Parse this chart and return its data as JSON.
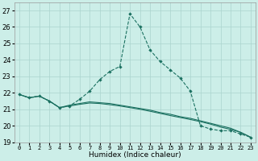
{
  "xlabel": "Humidex (Indice chaleur)",
  "bg_color": "#cceee8",
  "grid_color": "#aad4ce",
  "line_color": "#1a7060",
  "xlim": [
    -0.5,
    23.5
  ],
  "ylim": [
    19,
    27.5
  ],
  "yticks": [
    19,
    20,
    21,
    22,
    23,
    24,
    25,
    26,
    27
  ],
  "xticks": [
    0,
    1,
    2,
    3,
    4,
    5,
    6,
    7,
    8,
    9,
    10,
    11,
    12,
    13,
    14,
    15,
    16,
    17,
    18,
    19,
    20,
    21,
    22,
    23
  ],
  "line1_x": [
    0,
    1,
    2,
    3,
    4,
    5,
    6,
    7,
    8,
    9,
    10,
    11,
    12,
    13,
    14,
    15,
    16,
    17,
    18,
    19,
    20,
    21,
    22,
    23
  ],
  "line1_y": [
    21.9,
    21.7,
    21.8,
    21.5,
    21.1,
    21.2,
    21.6,
    22.1,
    22.8,
    23.3,
    23.6,
    26.8,
    26.0,
    24.6,
    23.9,
    23.4,
    22.9,
    22.1,
    20.0,
    19.8,
    19.7,
    19.7,
    19.5,
    19.3
  ],
  "line2_x": [
    0,
    1,
    2,
    3,
    4,
    5,
    6,
    7,
    8,
    9,
    10,
    11,
    12,
    13,
    14,
    15,
    16,
    17,
    18,
    19,
    20,
    21,
    22,
    23
  ],
  "line2_y": [
    21.9,
    21.7,
    21.8,
    21.5,
    21.1,
    21.25,
    21.35,
    21.45,
    21.4,
    21.35,
    21.25,
    21.15,
    21.05,
    20.95,
    20.8,
    20.7,
    20.55,
    20.45,
    20.3,
    20.15,
    20.0,
    19.85,
    19.6,
    19.3
  ],
  "line3_x": [
    0,
    1,
    2,
    3,
    4,
    5,
    6,
    7,
    8,
    9,
    10,
    11,
    12,
    13,
    14,
    15,
    16,
    17,
    18,
    19,
    20,
    21,
    22,
    23
  ],
  "line3_y": [
    21.9,
    21.7,
    21.8,
    21.5,
    21.1,
    21.2,
    21.3,
    21.38,
    21.35,
    21.28,
    21.2,
    21.1,
    21.0,
    20.88,
    20.75,
    20.62,
    20.5,
    20.38,
    20.25,
    20.1,
    19.92,
    19.78,
    19.6,
    19.3
  ]
}
